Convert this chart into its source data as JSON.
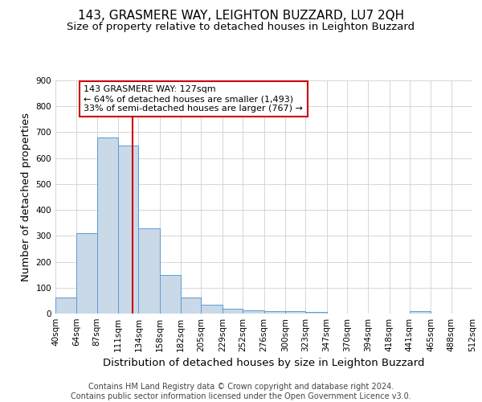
{
  "title": "143, GRASMERE WAY, LEIGHTON BUZZARD, LU7 2QH",
  "subtitle": "Size of property relative to detached houses in Leighton Buzzard",
  "xlabel": "Distribution of detached houses by size in Leighton Buzzard",
  "ylabel": "Number of detached properties",
  "footer_line1": "Contains HM Land Registry data © Crown copyright and database right 2024.",
  "footer_line2": "Contains public sector information licensed under the Open Government Licence v3.0.",
  "bin_edges": [
    40,
    64,
    87,
    111,
    134,
    158,
    182,
    205,
    229,
    252,
    276,
    300,
    323,
    347,
    370,
    394,
    418,
    441,
    465,
    488,
    512
  ],
  "bar_heights": [
    63,
    310,
    680,
    650,
    330,
    150,
    63,
    33,
    20,
    13,
    8,
    8,
    5,
    0,
    0,
    0,
    0,
    8,
    0,
    0
  ],
  "bar_facecolor": "#c9d9e8",
  "bar_edgecolor": "#5b9bd5",
  "vline_x": 127,
  "vline_color": "#cc0000",
  "annotation_text": "143 GRASMERE WAY: 127sqm\n← 64% of detached houses are smaller (1,493)\n33% of semi-detached houses are larger (767) →",
  "annotation_box_color": "white",
  "annotation_box_edgecolor": "#cc0000",
  "ylim": [
    0,
    900
  ],
  "yticks": [
    0,
    100,
    200,
    300,
    400,
    500,
    600,
    700,
    800,
    900
  ],
  "background_color": "white",
  "grid_color": "#d0d0d0",
  "title_fontsize": 11,
  "subtitle_fontsize": 9.5,
  "axis_label_fontsize": 9.5,
  "tick_fontsize": 7.5,
  "footer_fontsize": 7,
  "annotation_fontsize": 8
}
